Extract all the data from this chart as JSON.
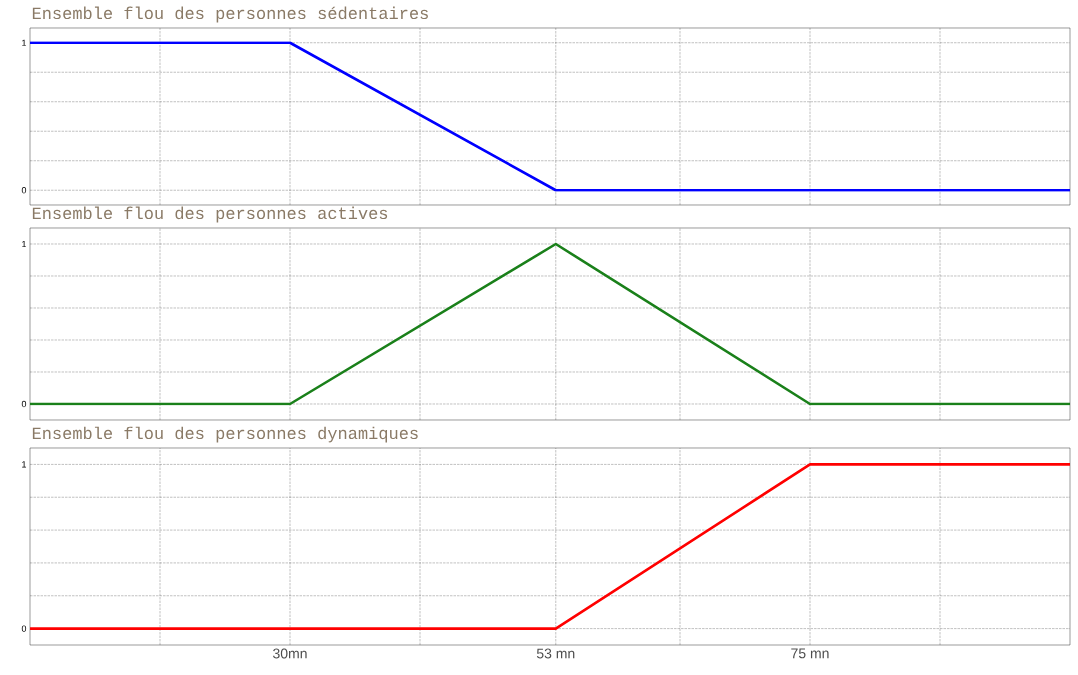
{
  "chart_data": [
    {
      "type": "line",
      "title": "Ensemble flou des personnes sédentaires",
      "series": [
        {
          "color": "#0000ff",
          "x": [
            7.5,
            30,
            53,
            97.5
          ],
          "values": [
            1,
            1,
            0,
            0
          ]
        }
      ],
      "xlim": [
        7.5,
        97.5
      ],
      "xticks": [
        {
          "value": 18.75,
          "label": null
        },
        {
          "value": 30,
          "label": null
        },
        {
          "value": 41.25,
          "label": null
        },
        {
          "value": 53,
          "label": null
        },
        {
          "value": 63.75,
          "label": null
        },
        {
          "value": 75,
          "label": null
        },
        {
          "value": 86.25,
          "label": null
        }
      ],
      "ylim": [
        -0.1,
        1.1
      ],
      "yticks": [
        0,
        {
          "value": 0.2,
          "label": null
        },
        {
          "value": 0.4,
          "label": null
        },
        {
          "value": 0.6,
          "label": null
        },
        {
          "value": 0.8,
          "label": null
        },
        1
      ],
      "grid": true,
      "tick_labels": "y"
    },
    {
      "type": "line",
      "title": "Ensemble flou des personnes actives",
      "series": [
        {
          "color": "#1a801a",
          "x": [
            7.5,
            30,
            53,
            75,
            97.5
          ],
          "values": [
            0,
            0,
            1,
            0,
            0
          ]
        }
      ],
      "xlim": [
        7.5,
        97.5
      ],
      "xticks": [
        {
          "value": 18.75,
          "label": null
        },
        {
          "value": 30,
          "label": null
        },
        {
          "value": 41.25,
          "label": null
        },
        {
          "value": 53,
          "label": null
        },
        {
          "value": 63.75,
          "label": null
        },
        {
          "value": 75,
          "label": null
        },
        {
          "value": 86.25,
          "label": null
        }
      ],
      "ylim": [
        -0.1,
        1.1
      ],
      "yticks": [
        0,
        {
          "value": 0.2,
          "label": null
        },
        {
          "value": 0.4,
          "label": null
        },
        {
          "value": 0.6,
          "label": null
        },
        {
          "value": 0.8,
          "label": null
        },
        1
      ],
      "grid": true,
      "tick_labels": "y"
    },
    {
      "type": "line",
      "title": "Ensemble flou des personnes dynamiques",
      "series": [
        {
          "color": "#ff0000",
          "x": [
            7.5,
            53,
            75,
            97.5
          ],
          "values": [
            0,
            0,
            1,
            1
          ]
        }
      ],
      "xlim": [
        7.5,
        97.5
      ],
      "xticks": [
        {
          "value": 18.75,
          "label": null
        },
        {
          "value": 30,
          "label": "30mn"
        },
        {
          "value": 41.25,
          "label": null
        },
        {
          "value": 53,
          "label": "53 mn"
        },
        {
          "value": 63.75,
          "label": null
        },
        {
          "value": 75,
          "label": "75 mn"
        },
        {
          "value": 86.25,
          "label": null
        }
      ],
      "ylim": [
        -0.1,
        1.1
      ],
      "yticks": [
        0,
        {
          "value": 0.2,
          "label": null
        },
        {
          "value": 0.4,
          "label": null
        },
        {
          "value": 0.6,
          "label": null
        },
        {
          "value": 0.8,
          "label": null
        },
        1
      ],
      "grid": true
    }
  ]
}
